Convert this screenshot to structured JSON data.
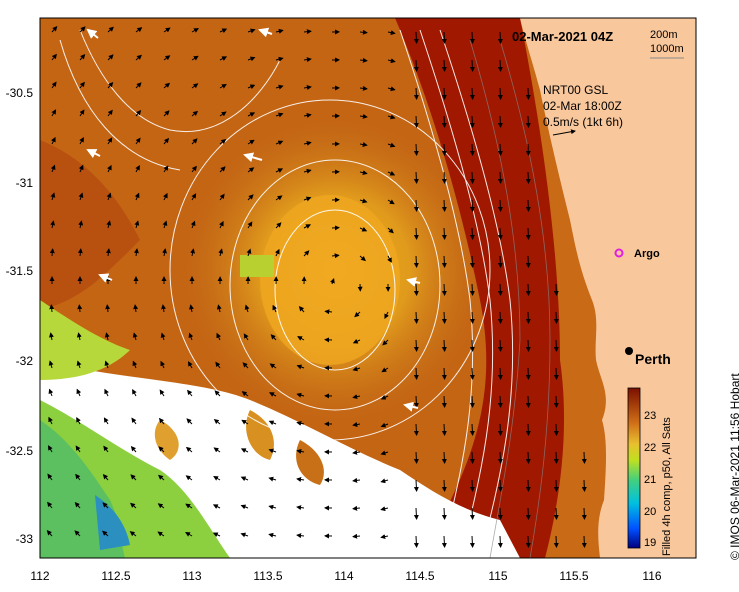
{
  "header": {
    "date_label": "02-Mar-2021 04Z",
    "contour_200": "200m",
    "contour_1000": "1000m"
  },
  "legend": {
    "line1": "NRT00 GSL",
    "line2": "02-Mar 18:00Z",
    "line3": "0.5m/s (1kt 6h)"
  },
  "markers": {
    "argo": "Argo",
    "perth": "Perth"
  },
  "colorbar": {
    "label": "Filled 4h comp, p50, All Sats",
    "ticks": [
      "23",
      "22",
      "21",
      "20",
      "19"
    ]
  },
  "axes": {
    "x_ticks": [
      "112",
      "112.5",
      "113",
      "113.5",
      "114",
      "114.5",
      "115",
      "115.5",
      "116"
    ],
    "y_ticks": [
      "-30.5",
      "-31",
      "-31.5",
      "-32",
      "-32.5",
      "-33"
    ]
  },
  "credit": "© IMOS 06-Mar-2021 11:56 Hobart",
  "colors": {
    "land": "#f9c79c",
    "current_core": "#a01800",
    "warm": "#c06010",
    "mid": "#d89018",
    "cool_green": "#70c030"
  }
}
